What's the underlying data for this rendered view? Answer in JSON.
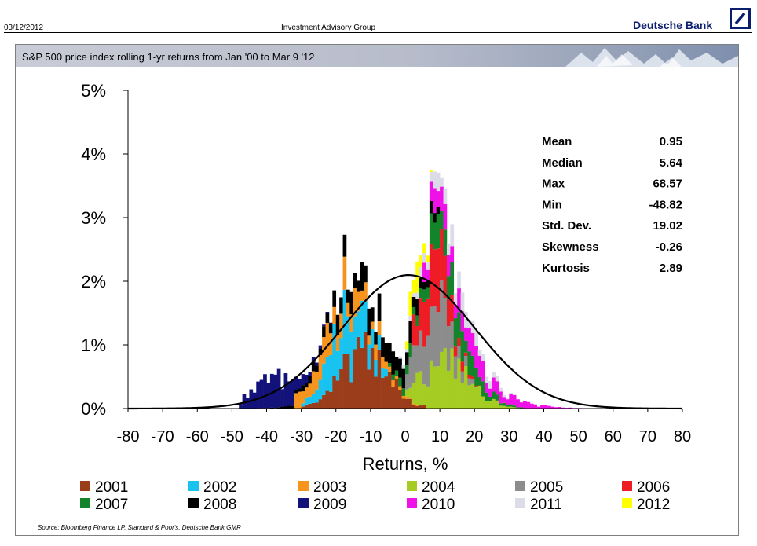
{
  "header": {
    "date": "03/12/2012",
    "group": "Investment Advisory Group",
    "brand": "Deutsche Bank",
    "logo_icon": "deutsche-bank-slash-logo"
  },
  "title": "S&P 500 price index rolling 1-yr returns from Jan '00  to Mar 9 '12",
  "source": "Source: Bloomberg Finance LP, Standard & Poor's, Deutsche Bank GMR",
  "chart_data": {
    "type": "bar",
    "stacked": true,
    "bin_width": 1,
    "xlabel": "Returns, %",
    "ylabel": "",
    "xlim": [
      -80,
      80
    ],
    "ylim": [
      0,
      5
    ],
    "x_ticks": [
      -80,
      -70,
      -60,
      -50,
      -40,
      -30,
      -20,
      -10,
      0,
      10,
      20,
      30,
      40,
      50,
      60,
      70,
      80
    ],
    "x_tick_labels": [
      "-80",
      "-70",
      "-60",
      "-50",
      "-40",
      "-30",
      "-20",
      "-10",
      "0",
      "10",
      "20",
      "30",
      "40",
      "50",
      "60",
      "70",
      "80"
    ],
    "y_ticks": [
      0,
      1,
      2,
      3,
      4,
      5
    ],
    "y_tick_labels": [
      "0%",
      "1%",
      "2%",
      "3%",
      "4%",
      "5%"
    ],
    "grid": false,
    "legend_position": "bottom",
    "series": [
      {
        "name": "2001",
        "color": "#9b3d1a",
        "center": -12,
        "spread": 7,
        "peak": 0.85,
        "min": -30,
        "max": 6
      },
      {
        "name": "2002",
        "color": "#19c3ef",
        "center": -17,
        "spread": 5.5,
        "peak": 0.75,
        "min": -30,
        "max": -5
      },
      {
        "name": "2003",
        "color": "#f7941d",
        "center": -20,
        "spread": 9,
        "peak": 0.4,
        "min": -32,
        "max": 40
      },
      {
        "name": "2004",
        "color": "#a5cc22",
        "center": 12,
        "spread": 7,
        "peak": 0.75,
        "min": 0,
        "max": 40
      },
      {
        "name": "2005",
        "color": "#8c8c8c",
        "center": 8,
        "spread": 5,
        "peak": 0.9,
        "min": 0,
        "max": 20
      },
      {
        "name": "2006",
        "color": "#ee1c24",
        "center": 8,
        "spread": 4.5,
        "peak": 0.75,
        "min": 2,
        "max": 22
      },
      {
        "name": "2007",
        "color": "#14842a",
        "center": 12,
        "spread": 8,
        "peak": 0.4,
        "min": -5,
        "max": 40
      },
      {
        "name": "2008",
        "color": "#000000",
        "center": -8,
        "spread": 12,
        "peak": 0.35,
        "min": -45,
        "max": 10
      },
      {
        "name": "2009",
        "color": "#12127a",
        "center": -38,
        "spread": 6,
        "peak": 0.45,
        "min": -48,
        "max": 68
      },
      {
        "name": "2010",
        "color": "#f010e8",
        "center": 12,
        "spread": 14,
        "peak": 0.3,
        "min": 5,
        "max": 68
      },
      {
        "name": "2011",
        "color": "#dcdce8",
        "center": 14,
        "spread": 8,
        "peak": 0.25,
        "min": -2,
        "max": 32
      },
      {
        "name": "2012",
        "color": "#ffff00",
        "center": 3,
        "spread": 2,
        "peak": 0.35,
        "min": 0,
        "max": 8
      }
    ],
    "normal_curve": {
      "mean": 0.95,
      "std": 19.02,
      "color": "#000000"
    },
    "stats": [
      {
        "label": "Mean",
        "value": "0.95"
      },
      {
        "label": "Median",
        "value": "5.64"
      },
      {
        "label": "Max",
        "value": "68.57"
      },
      {
        "label": "Min",
        "value": "-48.82"
      },
      {
        "label": "Std. Dev.",
        "value": "19.02"
      },
      {
        "label": "Skewness",
        "value": "-0.26"
      },
      {
        "label": "Kurtosis",
        "value": "2.89"
      }
    ]
  }
}
